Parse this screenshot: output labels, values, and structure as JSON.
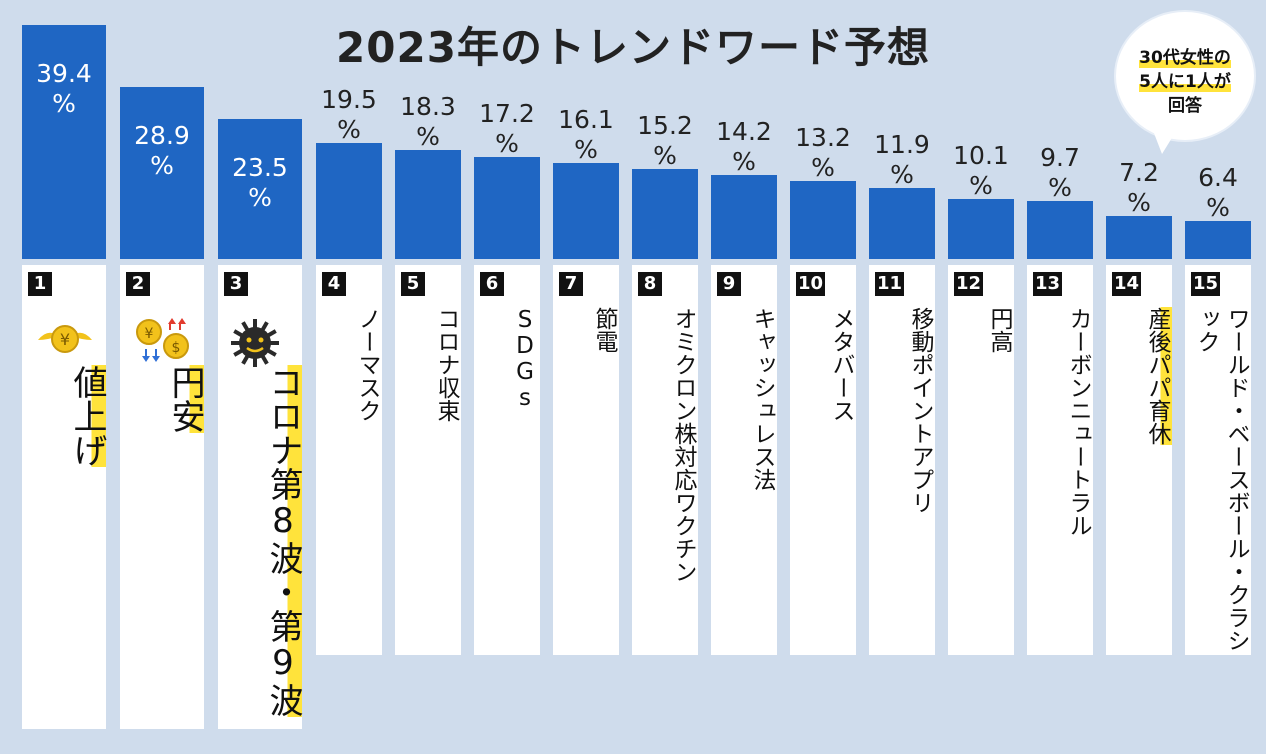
{
  "chart_data": {
    "type": "bar",
    "title": "2023年のトレンドワード予想",
    "unit": "%",
    "ylim": [
      0,
      39.4
    ],
    "bars": [
      {
        "rank": "1",
        "value": 39.4,
        "value_label": "39.4",
        "category": "値上げ"
      },
      {
        "rank": "2",
        "value": 28.9,
        "value_label": "28.9",
        "category": "円安"
      },
      {
        "rank": "3",
        "value": 23.5,
        "value_label": "23.5",
        "category": "コロナ第8波・第9波"
      },
      {
        "rank": "4",
        "value": 19.5,
        "value_label": "19.5",
        "category": "ノーマスク"
      },
      {
        "rank": "5",
        "value": 18.3,
        "value_label": "18.3",
        "category": "コロナ収束"
      },
      {
        "rank": "6",
        "value": 17.2,
        "value_label": "17.2",
        "category": "SDGs"
      },
      {
        "rank": "7",
        "value": 16.1,
        "value_label": "16.1",
        "category": "節電"
      },
      {
        "rank": "8",
        "value": 15.2,
        "value_label": "15.2",
        "category": "オミクロン株対応ワクチン"
      },
      {
        "rank": "9",
        "value": 14.2,
        "value_label": "14.2",
        "category": "キャッシュレス法"
      },
      {
        "rank": "10",
        "value": 13.2,
        "value_label": "13.2",
        "category": "メタバース"
      },
      {
        "rank": "11",
        "value": 11.9,
        "value_label": "11.9",
        "category": "移動ポイントアプリ"
      },
      {
        "rank": "12",
        "value": 10.1,
        "value_label": "10.1",
        "category": "円高"
      },
      {
        "rank": "13",
        "value": 9.7,
        "value_label": "9.7",
        "category": "カーボンニュートラル"
      },
      {
        "rank": "14",
        "value": 7.2,
        "value_label": "7.2",
        "category": "産後パパ育休"
      },
      {
        "rank": "15",
        "value": 6.4,
        "value_label": "6.4",
        "category": "ワールド・ベースボール・クラシック"
      }
    ],
    "highlighted": [
      "値上げ",
      "円安",
      "コロナ第8波・第9波",
      "産後パパ育休"
    ],
    "bar_color": "#1f66c3",
    "highlight_color": "#ffe33b",
    "background_color": "#cfdcec"
  },
  "callout": {
    "lines": [
      "30代女性の",
      "5人に1人が",
      "回答"
    ]
  },
  "icons": [
    "winged-yen-coin-icon",
    "yen-dollar-exchange-icon",
    "coronavirus-icon"
  ]
}
